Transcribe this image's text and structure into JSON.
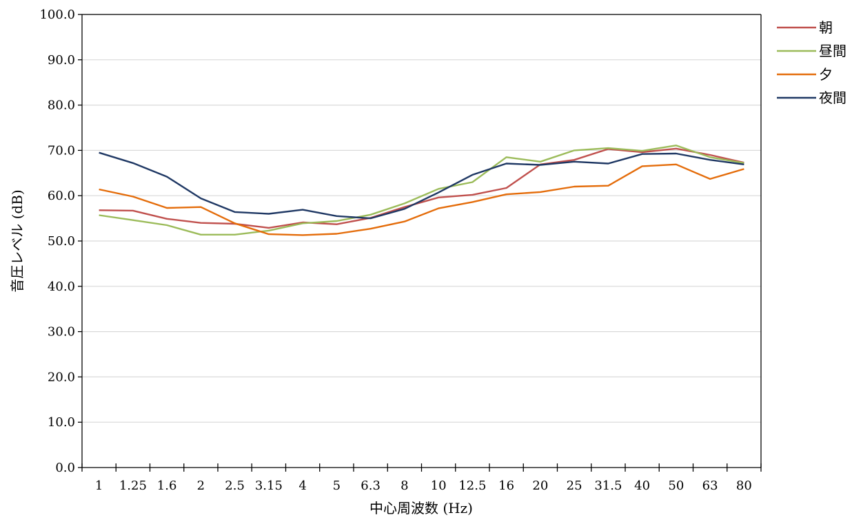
{
  "chart_data": {
    "type": "line",
    "title": "",
    "xlabel": "中心周波数 (Hz)",
    "ylabel": "音圧レベル (dB)",
    "categories": [
      "1",
      "1.25",
      "1.6",
      "2",
      "2.5",
      "3.15",
      "4",
      "5",
      "6.3",
      "8",
      "10",
      "12.5",
      "16",
      "20",
      "25",
      "31.5",
      "40",
      "50",
      "63",
      "80"
    ],
    "ylim": [
      0,
      100
    ],
    "yticks": [
      0,
      10,
      20,
      30,
      40,
      50,
      60,
      70,
      80,
      90,
      100
    ],
    "ytick_labels": [
      "0.0",
      "10.0",
      "20.0",
      "30.0",
      "40.0",
      "50.0",
      "60.0",
      "70.0",
      "80.0",
      "90.0",
      "100.0"
    ],
    "grid": "horizontal",
    "legend_position": "right",
    "series": [
      {
        "name": "朝",
        "color": "#c0504d",
        "values": [
          56.8,
          56.7,
          54.9,
          54.0,
          53.8,
          52.9,
          54.1,
          53.7,
          55.1,
          57.5,
          59.6,
          60.2,
          61.7,
          66.9,
          67.9,
          70.3,
          69.6,
          70.4,
          69.0,
          67.3
        ]
      },
      {
        "name": "昼間",
        "color": "#9bbb59",
        "values": [
          55.7,
          54.6,
          53.5,
          51.4,
          51.4,
          52.3,
          53.9,
          54.4,
          55.8,
          58.3,
          61.5,
          63.0,
          68.5,
          67.5,
          70.0,
          70.5,
          69.9,
          71.1,
          68.5,
          67.2
        ]
      },
      {
        "name": "夕",
        "color": "#e46c0a",
        "values": [
          61.4,
          59.8,
          57.3,
          57.5,
          53.9,
          51.5,
          51.3,
          51.6,
          52.7,
          54.3,
          57.2,
          58.6,
          60.3,
          60.8,
          62.0,
          62.2,
          66.5,
          66.9,
          63.7,
          65.9
        ]
      },
      {
        "name": "夜間",
        "color": "#1f3864",
        "values": [
          69.5,
          67.2,
          64.2,
          59.4,
          56.4,
          56.0,
          56.9,
          55.5,
          55.0,
          57.1,
          60.7,
          64.6,
          67.1,
          66.8,
          67.5,
          67.1,
          69.2,
          69.3,
          67.9,
          66.9
        ]
      }
    ]
  }
}
